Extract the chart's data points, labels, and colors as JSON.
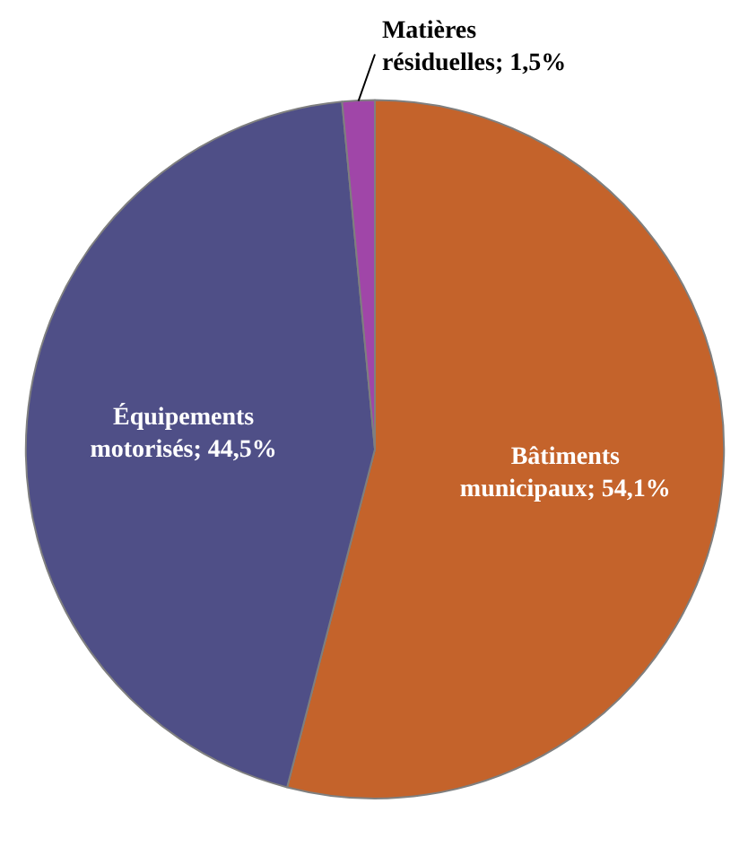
{
  "chart_data": {
    "type": "pie",
    "categories": [
      "Bâtiments municipaux",
      "Équipements motorisés",
      "Matières résiduelles"
    ],
    "values": [
      54.1,
      44.5,
      1.5
    ],
    "colors": [
      "#c4632b",
      "#4f4f87",
      "#a046a8"
    ],
    "value_labels": [
      "54,1%",
      "44,5%",
      "1,5%"
    ]
  }
}
